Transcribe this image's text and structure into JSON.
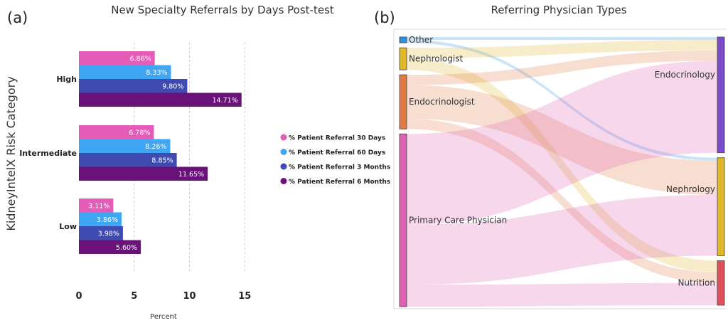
{
  "panel_a_label": "(a)",
  "panel_b_label": "(b)",
  "chart_data": [
    {
      "type": "bar",
      "orientation": "horizontal",
      "title": "New Specialty Referrals by Days Post-test",
      "xlabel": "Percent",
      "ylabel": "KidneyIntelX Risk Category",
      "xlim": [
        0,
        15
      ],
      "xticks": [
        0,
        5,
        10,
        15
      ],
      "grid": "vertical dashed",
      "legend_position": "right",
      "categories": [
        "High",
        "Intermediate",
        "Low"
      ],
      "series": [
        {
          "name": "% Patient Referral 30 Days",
          "color": "#e55cb8",
          "values": [
            6.86,
            6.78,
            3.11
          ],
          "labels": [
            "6.86%",
            "6.78%",
            "3.11%"
          ]
        },
        {
          "name": "% Patient Referral 60 Days",
          "color": "#3ea6f2",
          "values": [
            8.33,
            8.26,
            3.86
          ],
          "labels": [
            "8.33%",
            "8.26%",
            "3.86%"
          ]
        },
        {
          "name": "% Patient Referral 3 Months",
          "color": "#3f4bb0",
          "values": [
            9.8,
            8.85,
            3.98
          ],
          "labels": [
            "9.80%",
            "8.85%",
            "3.98%"
          ]
        },
        {
          "name": "% Patient Referral 6 Months",
          "color": "#68127a",
          "values": [
            14.71,
            11.65,
            5.6
          ],
          "labels": [
            "14.71%",
            "11.65%",
            "5.60%"
          ]
        }
      ]
    },
    {
      "type": "sankey",
      "title": "Referring Physician Types",
      "sources": [
        {
          "name": "Other",
          "color": "#2f8fe0"
        },
        {
          "name": "Nephrologist",
          "color": "#e0b82a"
        },
        {
          "name": "Endocrinologist",
          "color": "#e07a45"
        },
        {
          "name": "Primary Care Physician",
          "color": "#e060b2"
        }
      ],
      "targets": [
        {
          "name": "Endocrinology",
          "color": "#7c4bc9"
        },
        {
          "name": "Nephrology",
          "color": "#e0b82a"
        },
        {
          "name": "Nutrition",
          "color": "#e04f5a"
        }
      ],
      "links": [
        {
          "source": "Other",
          "target": "Endocrinology",
          "value": 4
        },
        {
          "source": "Other",
          "target": "Nephrology",
          "value": 4
        },
        {
          "source": "Nephrologist",
          "target": "Endocrinology",
          "value": 14
        },
        {
          "source": "Nephrologist",
          "target": "Nutrition",
          "value": 16
        },
        {
          "source": "Endocrinologist",
          "target": "Endocrinology",
          "value": 14
        },
        {
          "source": "Endocrinologist",
          "target": "Nephrology",
          "value": 46
        },
        {
          "source": "Endocrinologist",
          "target": "Nutrition",
          "value": 14
        },
        {
          "source": "Primary Care Physician",
          "target": "Endocrinology",
          "value": 124
        },
        {
          "source": "Primary Care Physician",
          "target": "Nephrology",
          "value": 82
        },
        {
          "source": "Primary Care Physician",
          "target": "Nutrition",
          "value": 30
        }
      ]
    }
  ]
}
